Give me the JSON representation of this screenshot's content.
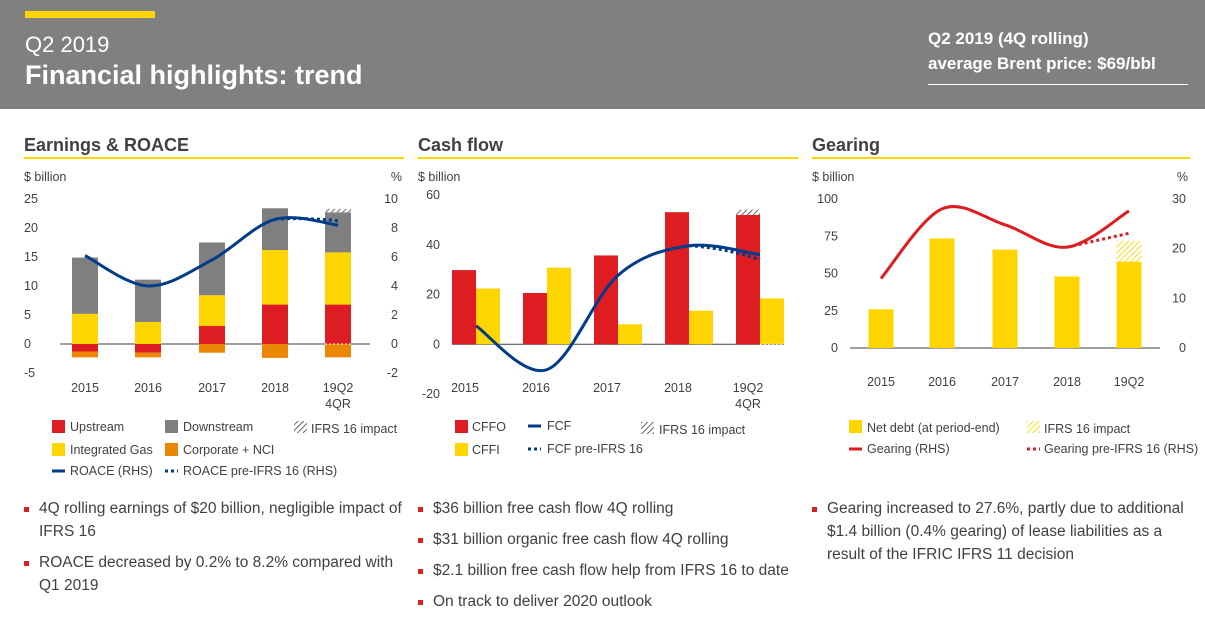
{
  "header": {
    "period": "Q2 2019",
    "title": "Financial highlights: trend",
    "brent_line1": "Q2 2019 (4Q rolling)",
    "brent_line2": "average Brent price: $69/bbl"
  },
  "colors": {
    "header_bg": "#808080",
    "accent_yellow": "#FFD500",
    "red": "#DD1D21",
    "grey": "#7F7F7F",
    "orange": "#EB8705",
    "navy": "#003C88"
  },
  "panels": {
    "earnings": {
      "title": "Earnings & ROACE",
      "unit_left": "$ billion",
      "unit_right": "%",
      "legend": {
        "upstream": "Upstream",
        "downstream": "Downstream",
        "ifrs": "IFRS 16 impact",
        "integrated_gas": "Integrated Gas",
        "corporate": "Corporate + NCI",
        "roace": "ROACE (RHS)",
        "roace_pre": "ROACE pre-IFRS 16 (RHS)"
      },
      "bullets": [
        "4Q rolling earnings of $20 billion, negligible impact of IFRS 16",
        "ROACE decreased by 0.2% to 8.2% compared with Q1 2019"
      ]
    },
    "cashflow": {
      "title": "Cash flow",
      "unit_left": "$ billion",
      "legend": {
        "cffo": "CFFO",
        "fcf": "FCF",
        "ifrs": "IFRS 16 impact",
        "cffi": "CFFI",
        "fcf_pre": "FCF pre-IFRS 16"
      },
      "bullets": [
        "$36 billion free cash flow 4Q rolling",
        "$31 billion organic free cash flow 4Q rolling",
        "$2.1 billion free cash flow help from IFRS 16 to date",
        "On track to deliver 2020 outlook"
      ]
    },
    "gearing": {
      "title": "Gearing",
      "unit_left": "$ billion",
      "unit_right": "%",
      "legend": {
        "net_debt": "Net debt (at period-end)",
        "ifrs": "IFRS 16 impact",
        "gearing": "Gearing (RHS)",
        "gearing_pre": "Gearing pre-IFRS 16 (RHS)"
      },
      "bullets": [
        "Gearing increased to 27.6%, partly due to additional $1.4 billion (0.4% gearing) of lease liabilities as a result of the IFRIC IFRS 11 decision"
      ]
    }
  },
  "chart_data": [
    {
      "type": "bar",
      "title": "Earnings & ROACE",
      "ylabel": "$ billion",
      "y2label": "%",
      "ylim": [
        -5,
        25
      ],
      "y2lim": [
        -2,
        10
      ],
      "yticks": [
        "25",
        "20",
        "15",
        "10",
        "5",
        "0",
        "-5"
      ],
      "y2ticks": [
        "10",
        "8",
        "6",
        "4",
        "2",
        "0",
        "-2"
      ],
      "categories": [
        "2015",
        "2016",
        "2017",
        "2018",
        "19Q2 4QR"
      ],
      "series": [
        {
          "name": "Upstream",
          "values": [
            -1.3,
            -1.5,
            3.1,
            6.8,
            6.8
          ]
        },
        {
          "name": "Integrated Gas",
          "values": [
            5.2,
            3.8,
            5.3,
            9.4,
            9.0
          ]
        },
        {
          "name": "Downstream",
          "values": [
            9.7,
            7.3,
            9.1,
            7.2,
            6.9
          ]
        },
        {
          "name": "Corporate + NCI",
          "values": [
            -1.0,
            -0.8,
            -1.5,
            -2.4,
            -2.3
          ]
        },
        {
          "name": "IFRS 16 impact",
          "values": [
            0,
            0,
            0,
            0,
            0.6
          ]
        }
      ],
      "lines": [
        {
          "name": "ROACE (RHS)",
          "values": [
            6.1,
            4.0,
            5.8,
            8.6,
            8.2
          ]
        },
        {
          "name": "ROACE pre-IFRS 16 (RHS)",
          "values": [
            null,
            null,
            null,
            8.6,
            8.5
          ]
        }
      ]
    },
    {
      "type": "bar",
      "title": "Cash flow",
      "ylabel": "$ billion",
      "ylim": [
        -20,
        60
      ],
      "yticks": [
        "60",
        "40",
        "20",
        "0",
        "-20"
      ],
      "categories": [
        "2015",
        "2016",
        "2017",
        "2018",
        "19Q2 4QR"
      ],
      "series": [
        {
          "name": "CFFO",
          "values": [
            29.8,
            20.6,
            35.7,
            53.1,
            52.0
          ]
        },
        {
          "name": "CFFI",
          "values": [
            22.4,
            30.8,
            8.0,
            13.5,
            18.4
          ]
        },
        {
          "name": "IFRS 16 impact",
          "values": [
            0,
            0,
            0,
            0,
            2.1
          ]
        }
      ],
      "lines": [
        {
          "name": "FCF",
          "values": [
            7.4,
            -10.2,
            27.7,
            39.6,
            36.0
          ]
        },
        {
          "name": "FCF pre-IFRS 16",
          "values": [
            null,
            null,
            null,
            39.6,
            34.0
          ]
        }
      ]
    },
    {
      "type": "bar",
      "title": "Gearing",
      "ylabel": "$ billion",
      "y2label": "%",
      "ylim": [
        0,
        100
      ],
      "y2lim": [
        0,
        30
      ],
      "yticks": [
        "100",
        "75",
        "50",
        "25",
        "0"
      ],
      "y2ticks": [
        "30",
        "20",
        "10",
        "0"
      ],
      "categories": [
        "2015",
        "2016",
        "2017",
        "2018",
        "19Q2"
      ],
      "series": [
        {
          "name": "Net debt (at period-end)",
          "values": [
            26.0,
            73.5,
            66.0,
            48.0,
            58.0
          ]
        },
        {
          "name": "IFRS 16 impact",
          "values": [
            0,
            0,
            0,
            0,
            14.0
          ]
        }
      ],
      "lines": [
        {
          "name": "Gearing (RHS)",
          "values": [
            14.0,
            28.0,
            24.8,
            20.3,
            27.6
          ]
        },
        {
          "name": "Gearing pre-IFRS 16 (RHS)",
          "values": [
            null,
            null,
            null,
            20.3,
            23.1
          ]
        }
      ]
    }
  ]
}
